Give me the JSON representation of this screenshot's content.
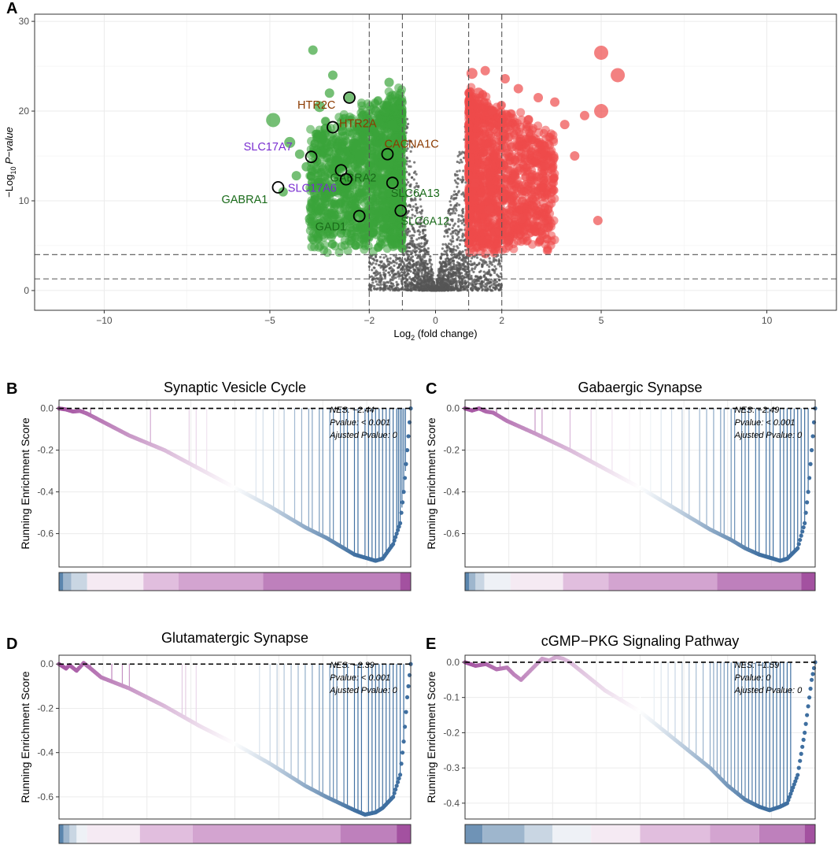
{
  "chart_data": [
    {
      "panel": "A",
      "type": "scatter",
      "title": "",
      "xlabel": "Log2 (fold change)",
      "ylabel": "-Log10 P-value",
      "xlabel_parts": {
        "pre": "Log",
        "sub": "2",
        "post": " (fold change)"
      },
      "ylabel_parts": {
        "pre": "−Log",
        "sub": "10",
        "post": "P−value"
      },
      "xlim": [
        -12.1,
        12.1
      ],
      "ylim": [
        -2.2,
        30.8
      ],
      "xticks": [
        -10,
        -5,
        -2,
        0,
        2,
        5,
        10
      ],
      "xtick_labels": [
        "−10",
        "−5",
        "−2",
        "0",
        "2",
        "5",
        "10"
      ],
      "yticks": [
        0,
        10,
        20,
        30
      ],
      "ytick_labels": [
        "0",
        "10",
        "20",
        "30"
      ],
      "vlines": [
        -2,
        -1,
        1,
        2
      ],
      "hlines": [
        1.3,
        4
      ],
      "colors": {
        "down": "#3aa43a",
        "up": "#ee4b4b",
        "ns": "#555555"
      },
      "series": [
        {
          "name": "down",
          "x": [
            -4.9,
            -4.4,
            -4.1,
            -3.9,
            -3.7,
            -3.5,
            -3.3,
            -3.1,
            -3.0,
            -2.8,
            -2.6,
            -2.4,
            -2.2,
            -2.0,
            -1.8,
            -1.6,
            -1.4,
            -1.3,
            -1.2,
            -3.2,
            -2.9,
            -2.5,
            -2.1,
            -1.9,
            -4.6,
            -3.6,
            -2.7,
            -3.8,
            -4.2,
            -2.3
          ],
          "y": [
            19.0,
            16.5,
            15.2,
            13.8,
            26.8,
            20.5,
            18.0,
            24.0,
            14.5,
            17.8,
            21.5,
            16.0,
            19.5,
            12.5,
            20.0,
            14.0,
            23.2,
            18.5,
            10.5,
            22.0,
            12.0,
            8.5,
            7.0,
            6.5,
            11.0,
            9.5,
            10.0,
            8.0,
            12.8,
            15.0
          ],
          "s": [
            9,
            7,
            6,
            6,
            6,
            7,
            7,
            6,
            6,
            6,
            6,
            6,
            6,
            6,
            6,
            6,
            6,
            6,
            6,
            6,
            6,
            6,
            6,
            6,
            6,
            6,
            6,
            6,
            6,
            6
          ]
        },
        {
          "name": "up",
          "x": [
            1.1,
            1.3,
            1.5,
            1.7,
            1.9,
            2.1,
            2.3,
            2.5,
            2.8,
            3.1,
            3.3,
            3.6,
            3.9,
            4.2,
            4.5,
            4.9,
            5.0,
            5.5,
            5.0,
            1.2,
            1.6,
            2.0,
            2.4,
            2.6,
            3.0,
            3.4,
            1.8,
            2.2
          ],
          "y": [
            24.2,
            22.0,
            24.5,
            20.0,
            18.5,
            23.6,
            16.0,
            22.5,
            19.0,
            21.5,
            14.0,
            21.0,
            18.5,
            15.0,
            19.5,
            7.8,
            20.0,
            24.0,
            26.5,
            12.0,
            9.0,
            10.5,
            12.8,
            8.0,
            11.0,
            7.0,
            6.5,
            5.5
          ],
          "s": [
            7,
            7,
            6,
            6,
            6,
            6,
            6,
            6,
            6,
            6,
            6,
            6,
            6,
            6,
            6,
            6,
            9,
            9,
            9,
            6,
            6,
            6,
            6,
            6,
            6,
            6,
            6,
            6
          ]
        }
      ],
      "highlighted": [
        {
          "label": "HTR2C",
          "x": -2.6,
          "y": 21.5,
          "color": "#8b3a00"
        },
        {
          "label": "HTR2A",
          "x": -3.1,
          "y": 18.2,
          "color": "#8b3a00"
        },
        {
          "label": "CACNA1C",
          "x": -1.45,
          "y": 15.2,
          "color": "#8b3a00"
        },
        {
          "label": "SLC17A7",
          "x": -3.75,
          "y": 14.9,
          "color": "#7a2fd1"
        },
        {
          "label": "GABRA2",
          "x": -2.85,
          "y": 13.4,
          "color": "#1a6b1a"
        },
        {
          "label": "SLC17A6",
          "x": -2.7,
          "y": 12.4,
          "color": "#7a2fd1"
        },
        {
          "label": "GABRA1",
          "x": -4.75,
          "y": 11.5,
          "color": "#1a6b1a"
        },
        {
          "label": "SLC6A13",
          "x": -1.3,
          "y": 12.0,
          "color": "#1a6b1a"
        },
        {
          "label": "SLC6A12",
          "x": -1.05,
          "y": 8.9,
          "color": "#1a6b1a"
        },
        {
          "label": "GAD1",
          "x": -2.3,
          "y": 8.3,
          "color": "#1a6b1a"
        }
      ]
    },
    {
      "panel": "B",
      "type": "line",
      "title": "Synaptic Vesicle Cycle",
      "ylabel": "Running Enrichment Score",
      "ylim": [
        -0.76,
        0.04
      ],
      "yticks": [
        0.0,
        -0.2,
        -0.4,
        -0.6
      ],
      "ytick_labels": [
        "0.0",
        "-0.2",
        "-0.4",
        "-0.6"
      ],
      "stats": {
        "nes": "NES: −2.44",
        "pvalue": "Pvalue: < 0.001",
        "adj": "Ajusted Pvalue: 0"
      },
      "curve_x": [
        0,
        0.02,
        0.04,
        0.06,
        0.08,
        0.12,
        0.2,
        0.3,
        0.4,
        0.5,
        0.6,
        0.7,
        0.76,
        0.8,
        0.84,
        0.88,
        0.9,
        0.92,
        0.95,
        0.97,
        0.98,
        0.99,
        1.0
      ],
      "curve_y": [
        0,
        -0.005,
        -0.015,
        -0.012,
        -0.025,
        -0.06,
        -0.13,
        -0.2,
        -0.29,
        -0.38,
        -0.47,
        -0.57,
        -0.62,
        -0.66,
        -0.7,
        -0.72,
        -0.73,
        -0.72,
        -0.65,
        -0.55,
        -0.4,
        -0.2,
        0
      ],
      "hits": [
        0.02,
        0.05,
        0.07,
        0.09,
        0.26,
        0.37,
        0.39,
        0.42,
        0.56,
        0.58,
        0.61,
        0.64,
        0.67,
        0.69,
        0.71,
        0.72,
        0.74,
        0.75,
        0.77,
        0.78,
        0.8,
        0.81,
        0.82,
        0.84,
        0.85,
        0.87,
        0.88,
        0.89,
        0.9,
        0.91,
        0.92,
        0.93,
        0.94,
        0.95,
        0.96,
        0.965,
        0.97,
        0.975,
        0.98,
        0.985
      ],
      "bar_segments": [
        0,
        0.012,
        0.035,
        0.08,
        0.24,
        0.34,
        0.58,
        0.97,
        1.0
      ],
      "bar_colors": [
        "#5a85ad",
        "#9eb6cd",
        "#c9d6e3",
        "#f5eaf3",
        "#e1bede",
        "#d3a4d0",
        "#be80bc",
        "#a351a0"
      ]
    },
    {
      "panel": "C",
      "type": "line",
      "title": "Gabaergic Synapse",
      "ylabel": "Running Enrichment Score",
      "ylim": [
        -0.76,
        0.04
      ],
      "yticks": [
        0.0,
        -0.2,
        -0.4,
        -0.6
      ],
      "ytick_labels": [
        "0.0",
        "-0.2",
        "-0.4",
        "-0.6"
      ],
      "stats": {
        "nes": "NES: −2.49",
        "pvalue": "Pvalue: < 0.001",
        "adj": "Ajusted Pvalue: 0"
      },
      "curve_x": [
        0,
        0.02,
        0.04,
        0.06,
        0.08,
        0.12,
        0.2,
        0.3,
        0.4,
        0.5,
        0.6,
        0.7,
        0.76,
        0.8,
        0.84,
        0.88,
        0.9,
        0.92,
        0.95,
        0.97,
        0.98,
        0.99,
        1.0
      ],
      "curve_y": [
        0,
        -0.01,
        0.0,
        -0.015,
        -0.02,
        -0.06,
        -0.12,
        -0.2,
        -0.29,
        -0.38,
        -0.48,
        -0.58,
        -0.63,
        -0.67,
        -0.7,
        -0.72,
        -0.73,
        -0.72,
        -0.67,
        -0.55,
        -0.4,
        -0.2,
        0
      ],
      "hits": [
        0.02,
        0.04,
        0.06,
        0.09,
        0.2,
        0.22,
        0.3,
        0.36,
        0.42,
        0.47,
        0.53,
        0.56,
        0.59,
        0.62,
        0.64,
        0.67,
        0.69,
        0.71,
        0.73,
        0.74,
        0.76,
        0.77,
        0.79,
        0.8,
        0.81,
        0.83,
        0.84,
        0.86,
        0.87,
        0.88,
        0.9,
        0.91,
        0.92,
        0.93,
        0.94,
        0.95,
        0.96,
        0.97,
        0.98
      ],
      "bar_segments": [
        0,
        0.012,
        0.03,
        0.055,
        0.13,
        0.28,
        0.41,
        0.72,
        0.96,
        1.0
      ],
      "bar_colors": [
        "#5a85ad",
        "#9eb6cd",
        "#c9d6e3",
        "#eef1f6",
        "#f5eaf3",
        "#e1bede",
        "#d3a4d0",
        "#be80bc",
        "#a351a0"
      ]
    },
    {
      "panel": "D",
      "type": "line",
      "title": "Glutamatergic Synapse",
      "ylabel": "Running Enrichment Score",
      "ylim": [
        -0.7,
        0.04
      ],
      "yticks": [
        0.0,
        -0.2,
        -0.4,
        -0.6
      ],
      "ytick_labels": [
        "0.0",
        "-0.2",
        "-0.4",
        "-0.6"
      ],
      "stats": {
        "nes": "NES: −2.39",
        "pvalue": "Pvalue: < 0.001",
        "adj": "Ajusted Pvalue: 0"
      },
      "curve_x": [
        0,
        0.02,
        0.03,
        0.05,
        0.07,
        0.09,
        0.12,
        0.2,
        0.3,
        0.4,
        0.5,
        0.6,
        0.7,
        0.76,
        0.8,
        0.84,
        0.87,
        0.9,
        0.92,
        0.95,
        0.97,
        0.98,
        0.99,
        1.0
      ],
      "curve_y": [
        0,
        -0.02,
        -0.005,
        -0.03,
        0.005,
        -0.02,
        -0.06,
        -0.11,
        -0.19,
        -0.28,
        -0.36,
        -0.45,
        -0.55,
        -0.6,
        -0.63,
        -0.66,
        -0.68,
        -0.67,
        -0.65,
        -0.6,
        -0.5,
        -0.35,
        -0.15,
        0
      ],
      "hits": [
        0.01,
        0.03,
        0.07,
        0.09,
        0.15,
        0.18,
        0.2,
        0.35,
        0.36,
        0.39,
        0.57,
        0.6,
        0.62,
        0.64,
        0.66,
        0.68,
        0.7,
        0.72,
        0.74,
        0.75,
        0.77,
        0.78,
        0.79,
        0.81,
        0.82,
        0.84,
        0.85,
        0.86,
        0.88,
        0.89,
        0.9,
        0.91,
        0.92,
        0.93,
        0.94,
        0.95,
        0.96,
        0.97,
        0.98
      ],
      "bar_segments": [
        0,
        0.013,
        0.03,
        0.05,
        0.08,
        0.23,
        0.38,
        0.8,
        0.96,
        1.0
      ],
      "bar_colors": [
        "#5a85ad",
        "#9eb6cd",
        "#c9d6e3",
        "#eef1f6",
        "#f5eaf3",
        "#e1bede",
        "#d3a4d0",
        "#be80bc",
        "#a351a0"
      ]
    },
    {
      "panel": "E",
      "type": "line",
      "title": "cGMP−PKG Signaling Pathway",
      "ylabel": "Running Enrichment Score",
      "ylim": [
        -0.445,
        0.02
      ],
      "yticks": [
        0.0,
        -0.1,
        -0.2,
        -0.3,
        -0.4
      ],
      "ytick_labels": [
        "0.0",
        "-0.1",
        "-0.2",
        "-0.3",
        "-0.4"
      ],
      "stats": {
        "nes": "NES: −1.59",
        "pvalue": "Pvalue: 0",
        "adj": "Ajusted Pvalue: 0"
      },
      "curve_x": [
        0,
        0.03,
        0.06,
        0.09,
        0.12,
        0.14,
        0.16,
        0.18,
        0.2,
        0.22,
        0.24,
        0.26,
        0.28,
        0.3,
        0.35,
        0.4,
        0.5,
        0.6,
        0.7,
        0.75,
        0.8,
        0.84,
        0.87,
        0.9,
        0.92,
        0.95,
        0.97,
        0.99,
        1.0
      ],
      "curve_y": [
        0,
        -0.01,
        -0.005,
        -0.02,
        -0.015,
        -0.035,
        -0.05,
        -0.03,
        -0.01,
        0.01,
        0.005,
        0.015,
        0.01,
        0.0,
        -0.04,
        -0.08,
        -0.14,
        -0.22,
        -0.3,
        -0.35,
        -0.39,
        -0.41,
        -0.42,
        -0.41,
        -0.4,
        -0.32,
        -0.2,
        -0.05,
        0
      ],
      "hits": [
        0.1,
        0.3,
        0.45,
        0.5,
        0.54,
        0.56,
        0.58,
        0.6,
        0.62,
        0.64,
        0.66,
        0.68,
        0.7,
        0.71,
        0.72,
        0.73,
        0.74,
        0.75,
        0.76,
        0.77,
        0.78,
        0.79,
        0.8,
        0.81,
        0.82,
        0.83,
        0.84,
        0.85,
        0.86,
        0.87,
        0.88,
        0.89,
        0.9,
        0.91,
        0.92,
        0.93
      ],
      "bar_segments": [
        0,
        0.05,
        0.17,
        0.25,
        0.36,
        0.5,
        0.7,
        0.84,
        0.97,
        1.0
      ],
      "bar_colors": [
        "#6f93b6",
        "#9eb6cd",
        "#c9d6e3",
        "#eef1f6",
        "#f5eaf3",
        "#e1bede",
        "#d3a4d0",
        "#be80bc",
        "#a351a0"
      ]
    }
  ]
}
